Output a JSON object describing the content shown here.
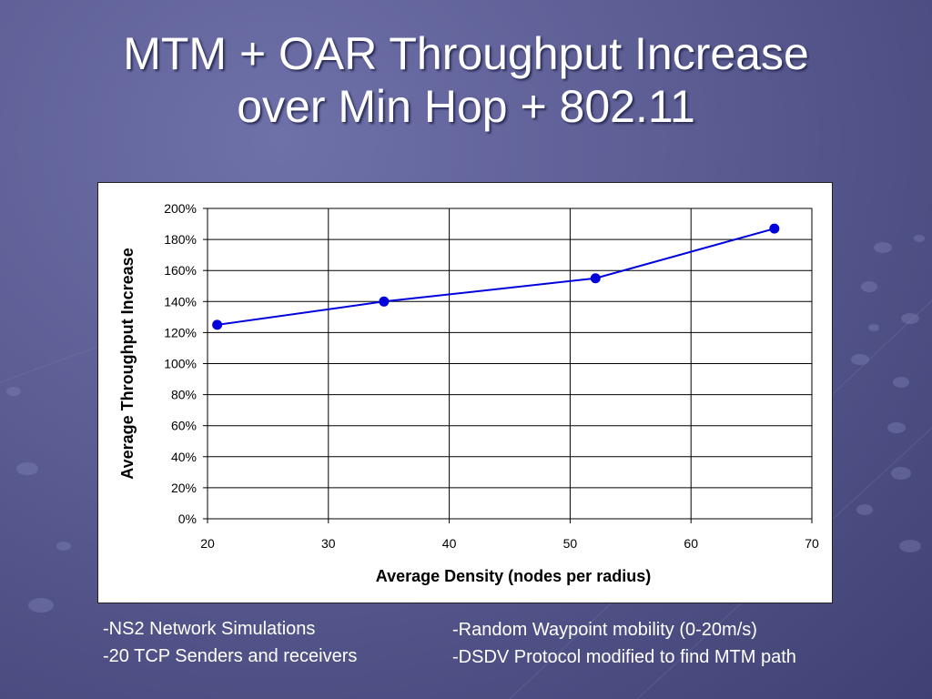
{
  "slide": {
    "title_line1": "MTM + OAR Throughput Increase",
    "title_line2": "over Min Hop + 802.11",
    "notes_left": [
      "-NS2 Network Simulations",
      "-20 TCP Senders and receivers"
    ],
    "notes_right": [
      "-Random Waypoint mobility (0-20m/s)",
      "-DSDV Protocol modified to find MTM path"
    ]
  },
  "chart_data": {
    "type": "scatter",
    "xlabel": "Average Density (nodes per radius)",
    "ylabel": "Average Throughput Increase",
    "xlim": [
      20,
      70
    ],
    "ylim": [
      0,
      200
    ],
    "x_ticks": [
      "20",
      "30",
      "40",
      "50",
      "60",
      "70"
    ],
    "y_ticks": [
      "0%",
      "20%",
      "40%",
      "60%",
      "80%",
      "100%",
      "120%",
      "140%",
      "160%",
      "180%",
      "200%"
    ],
    "grid": true,
    "series": [
      {
        "x": [
          20.8,
          34.6,
          52.1,
          66.9
        ],
        "y": [
          125,
          140,
          155,
          187
        ],
        "color": "#0000dd"
      }
    ]
  }
}
